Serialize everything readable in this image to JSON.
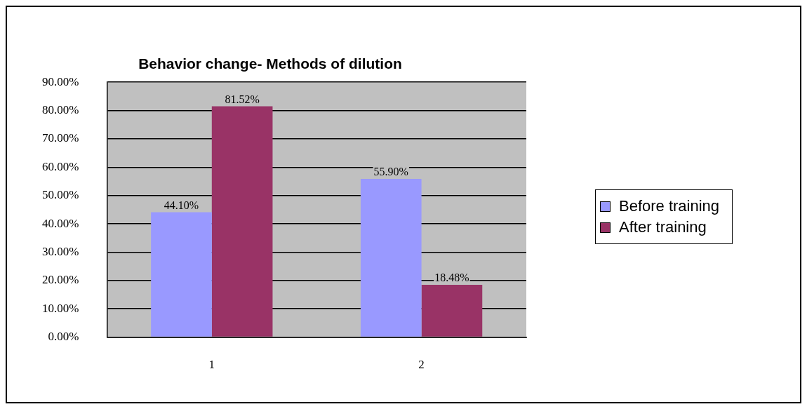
{
  "chart_data": {
    "type": "bar",
    "title": "Behavior change- Methods of dilution",
    "categories": [
      "1",
      "2"
    ],
    "series": [
      {
        "name": "Before training",
        "color": "#9999ff",
        "values": [
          44.1,
          55.9
        ],
        "value_labels": [
          "44.10%",
          "55.90%"
        ]
      },
      {
        "name": "After training",
        "color": "#993366",
        "values": [
          81.52,
          18.48
        ],
        "value_labels": [
          "81.52%",
          "18.48%"
        ]
      }
    ],
    "ylim": [
      0,
      90
    ],
    "yticks": [
      {
        "value": 0,
        "label": "0.00%"
      },
      {
        "value": 10,
        "label": "10.00%"
      },
      {
        "value": 20,
        "label": "20.00%"
      },
      {
        "value": 30,
        "label": "30.00%"
      },
      {
        "value": 40,
        "label": "40.00%"
      },
      {
        "value": 50,
        "label": "50.00%"
      },
      {
        "value": 60,
        "label": "60.00%"
      },
      {
        "value": 70,
        "label": "70.00%"
      },
      {
        "value": 80,
        "label": "80.00%"
      },
      {
        "value": 90,
        "label": "90.00%"
      }
    ],
    "grid": "y",
    "legend": "right"
  }
}
